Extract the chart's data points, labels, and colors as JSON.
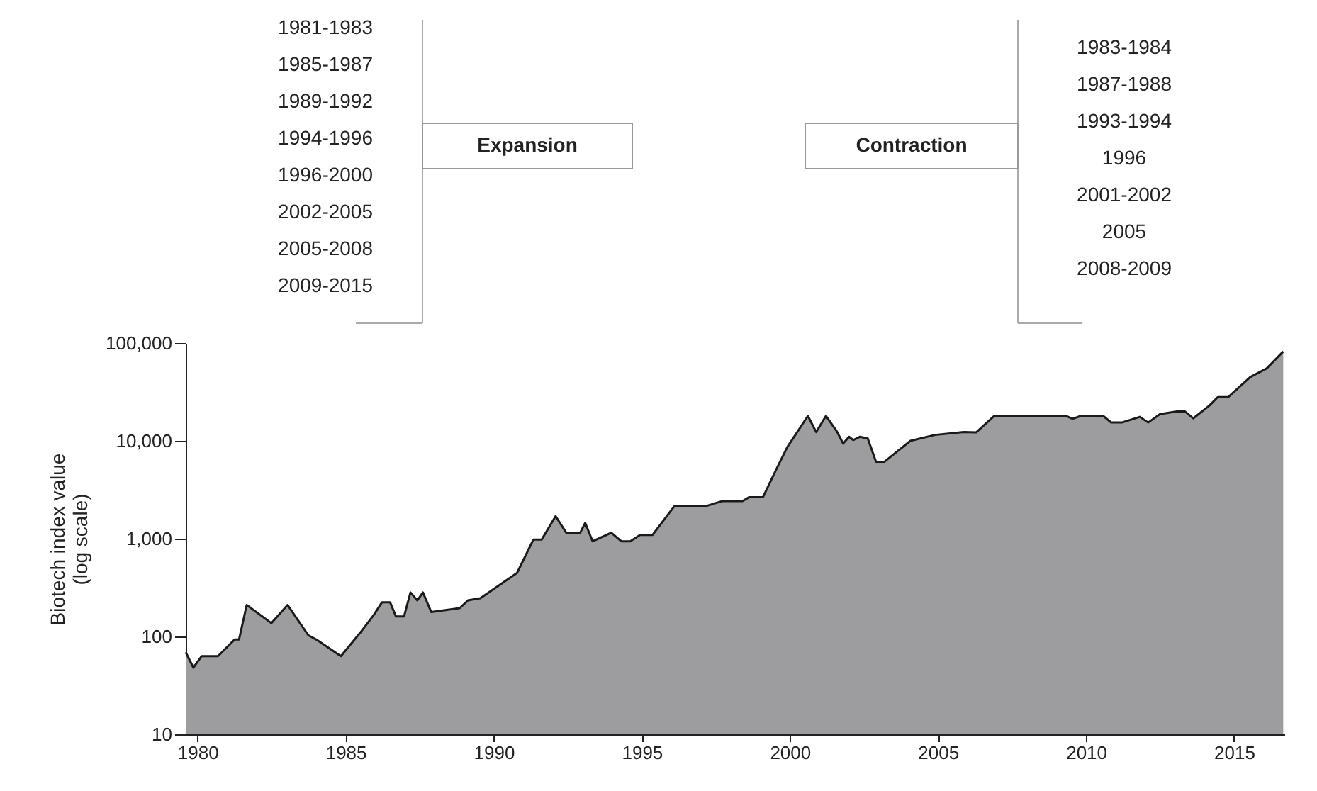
{
  "chart_data": {
    "type": "area",
    "ylabel": "Biotech index value\n(log scale)",
    "log": true,
    "grid": false,
    "xlim": [
      1979.6,
      2016.7
    ],
    "xticks": [
      1980,
      1985,
      1990,
      1995,
      2000,
      2005,
      2010,
      2015
    ],
    "ylim": [
      10,
      100000
    ],
    "yticks": [
      {
        "value": 10,
        "label": "10"
      },
      {
        "value": 100,
        "label": "100"
      },
      {
        "value": 1000,
        "label": "1,000"
      },
      {
        "value": 10000,
        "label": "10,000"
      },
      {
        "value": 100000,
        "label": "100,000"
      }
    ],
    "x": [
      1979.6,
      1979.86,
      1980.14,
      1980.69,
      1981.25,
      1981.4,
      1981.66,
      1982.49,
      1983.04,
      1983.74,
      1984.01,
      1984.84,
      1985.53,
      1985.95,
      1986.23,
      1986.5,
      1986.7,
      1986.97,
      1987.19,
      1987.42,
      1987.61,
      1987.89,
      1988.85,
      1989.13,
      1989.55,
      1990.79,
      1991.34,
      1991.62,
      1992.09,
      1992.45,
      1992.92,
      1993.09,
      1993.34,
      1993.97,
      1994.31,
      1994.61,
      1994.94,
      1995.36,
      1996.1,
      1997.16,
      1997.71,
      1998.4,
      1998.62,
      1999.09,
      1999.56,
      1999.92,
      2000.61,
      2000.89,
      2001.22,
      2001.58,
      2001.8,
      2002.0,
      2002.14,
      2002.36,
      2002.63,
      2002.91,
      2003.19,
      2004.07,
      2004.9,
      2005.87,
      2006.29,
      2006.9,
      2009.33,
      2009.55,
      2009.83,
      2010.58,
      2010.85,
      2011.21,
      2011.82,
      2012.1,
      2012.5,
      2013.07,
      2013.34,
      2013.62,
      2014.17,
      2014.45,
      2014.8,
      2015.55,
      2016.1,
      2016.66
    ],
    "series": [
      {
        "color": "#9d9d9f",
        "values": [
          69,
          48,
          63,
          63,
          93,
          93,
          210,
          137,
          210,
          103,
          93,
          63,
          113,
          166,
          224,
          224,
          160,
          160,
          282,
          234,
          282,
          178,
          195,
          234,
          246,
          447,
          980,
          980,
          1700,
          1150,
          1150,
          1450,
          940,
          1150,
          940,
          940,
          1090,
          1090,
          2150,
          2150,
          2420,
          2420,
          2650,
          2650,
          5250,
          8700,
          18000,
          12300,
          18000,
          12600,
          9400,
          11000,
          10200,
          11000,
          10600,
          6100,
          6100,
          10000,
          11500,
          12300,
          12200,
          18000,
          18000,
          16800,
          18000,
          18000,
          15400,
          15400,
          17600,
          15400,
          18800,
          20000,
          20000,
          17000,
          23000,
          28000,
          28000,
          45000,
          55000,
          82000
        ]
      }
    ],
    "annotations": [
      "Expansion",
      "1981-1983",
      "1985-1987",
      "1989-1992",
      "1994-1996",
      "1996-2000",
      "2002-2005",
      "2005-2008",
      "2009-2015",
      "Contraction",
      "1983-1984",
      "1987-1988",
      "1993-1994",
      "1996",
      "2001-2002",
      "2005",
      "2008-2009"
    ]
  }
}
